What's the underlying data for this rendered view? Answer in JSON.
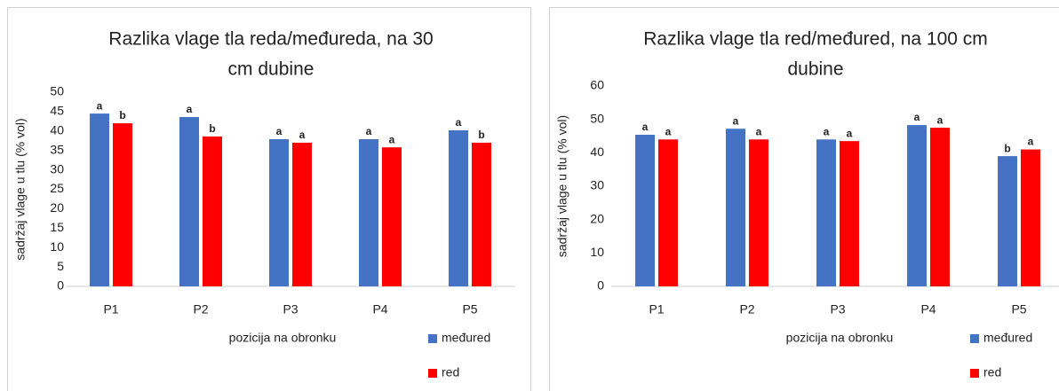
{
  "chart_data": [
    {
      "type": "bar",
      "title": [
        "Razlika vlage tla reda/međureda, na 30",
        "cm dubine"
      ],
      "x_label": "pozicija na obronku",
      "y_label": "sadržaj vlage u tlu (% vol)",
      "categories": [
        "P1",
        "P2",
        "P3",
        "P4",
        "P5"
      ],
      "series": [
        {
          "name": "međured",
          "color": "#4472c4",
          "values": [
            44.5,
            43.6,
            37.9,
            37.9,
            40.2
          ],
          "labels": [
            "a",
            "a",
            "a",
            "a",
            "a"
          ]
        },
        {
          "name": "red",
          "color": "#ff0000",
          "values": [
            42,
            38.6,
            37,
            35.8,
            37
          ],
          "labels": [
            "b",
            "b",
            "a",
            "a",
            "b"
          ]
        }
      ],
      "ylim": [
        0,
        50
      ],
      "yticks": [
        0,
        5,
        10,
        15,
        20,
        25,
        30,
        35,
        40,
        45,
        50
      ],
      "legend": "bottom-right"
    },
    {
      "type": "bar",
      "title": [
        "Razlika vlage tla red/međured, na 100 cm",
        "dubine"
      ],
      "x_label": "pozicija na obronku",
      "y_label": "sadržaj vlage u tlu (% vol)",
      "categories": [
        "P1",
        "P2",
        "P3",
        "P4",
        "P5"
      ],
      "series": [
        {
          "name": "međured",
          "color": "#4472c4",
          "values": [
            45.4,
            47.2,
            44,
            48.3,
            39
          ],
          "labels": [
            "a",
            "a",
            "a",
            "a",
            "b"
          ]
        },
        {
          "name": "red",
          "color": "#ff0000",
          "values": [
            44,
            44,
            43.5,
            47.5,
            41
          ],
          "labels": [
            "a",
            "a",
            "a",
            "a",
            "a"
          ]
        }
      ],
      "ylim": [
        0,
        60
      ],
      "yticks": [
        0,
        10,
        20,
        30,
        40,
        50,
        60
      ],
      "legend": "bottom-right"
    }
  ]
}
